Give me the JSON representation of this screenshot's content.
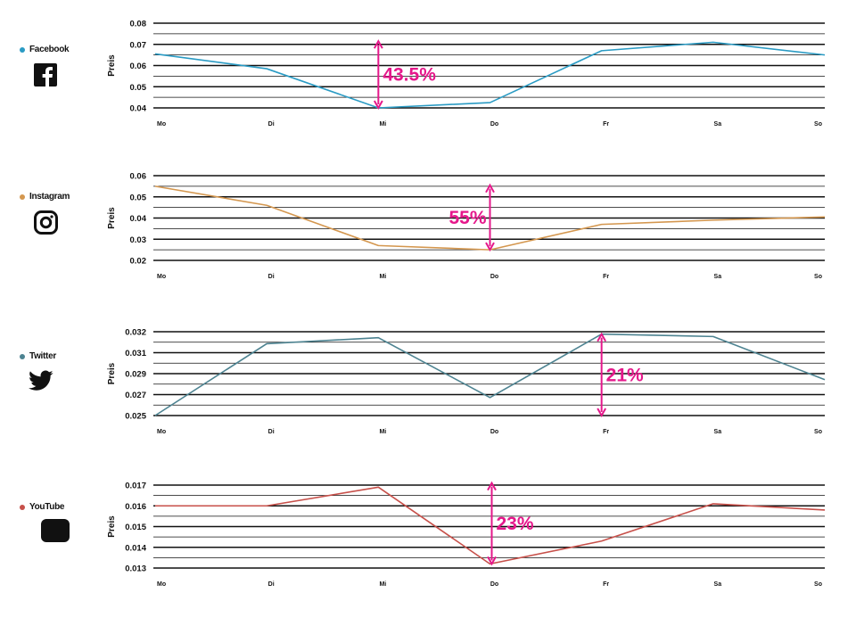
{
  "colors": {
    "accent": "#e5188b",
    "grid": "#111111"
  },
  "chart_data": [
    {
      "type": "line",
      "series": [
        {
          "name": "Facebook",
          "color": "#2a9bc4",
          "values": [
            0.0655,
            0.0585,
            0.04,
            0.0425,
            0.067,
            0.071,
            0.065
          ]
        }
      ],
      "categories": [
        "Mo",
        "Di",
        "Mi",
        "Do",
        "Fr",
        "Sa",
        "So"
      ],
      "yticks": [
        0.08,
        0.07,
        0.06,
        0.05,
        0.04
      ],
      "ylim": [
        0.04,
        0.08
      ],
      "ylabel": "Preis",
      "legend_icon": "facebook-icon",
      "annotation": {
        "text": "43.5%",
        "x_index": 2,
        "from": 0.04,
        "to": 0.0715
      }
    },
    {
      "type": "line",
      "series": [
        {
          "name": "Instagram",
          "color": "#d4974f",
          "values": [
            0.055,
            0.046,
            0.027,
            0.025,
            0.037,
            0.039,
            0.0405
          ]
        }
      ],
      "categories": [
        "Mo",
        "Di",
        "Mi",
        "Do",
        "Fr",
        "Sa",
        "So"
      ],
      "yticks": [
        0.06,
        0.05,
        0.04,
        0.03,
        0.02
      ],
      "ylim": [
        0.02,
        0.06
      ],
      "ylabel": "Preis",
      "legend_icon": "instagram-icon",
      "annotation": {
        "text": "55%",
        "x_index": 3,
        "from": 0.025,
        "to": 0.0555
      }
    },
    {
      "type": "line",
      "series": [
        {
          "name": "Twitter",
          "color": "#4d8391",
          "values": [
            0.025,
            0.031,
            0.0315,
            0.0265,
            0.0318,
            0.0316,
            0.028
          ]
        }
      ],
      "categories": [
        "Mo",
        "Di",
        "Mi",
        "Do",
        "Fr",
        "Sa",
        "So"
      ],
      "yticks": [
        0.032,
        0.031,
        0.029,
        0.027,
        0.025
      ],
      "ylim": [
        0.025,
        0.033
      ],
      "ylabel": "Preis",
      "legend_icon": "twitter-icon",
      "annotation": {
        "text": "21%",
        "x_index": 4,
        "from": 0.025,
        "to": 0.0318
      }
    },
    {
      "type": "line",
      "series": [
        {
          "name": "YouTube",
          "color": "#c7504a",
          "values": [
            0.016,
            0.016,
            0.0169,
            0.0132,
            0.0143,
            0.0161,
            0.0158
          ]
        }
      ],
      "categories": [
        "Mo",
        "Di",
        "Mi",
        "Do",
        "Fr",
        "Sa",
        "So"
      ],
      "yticks": [
        0.017,
        0.016,
        0.015,
        0.014,
        0.013
      ],
      "ylim": [
        0.013,
        0.0175
      ],
      "ylabel": "Preis",
      "legend_icon": "youtube-icon",
      "annotation": {
        "text": "23%",
        "x_index": 3,
        "from": 0.0132,
        "to": 0.0171
      }
    }
  ]
}
